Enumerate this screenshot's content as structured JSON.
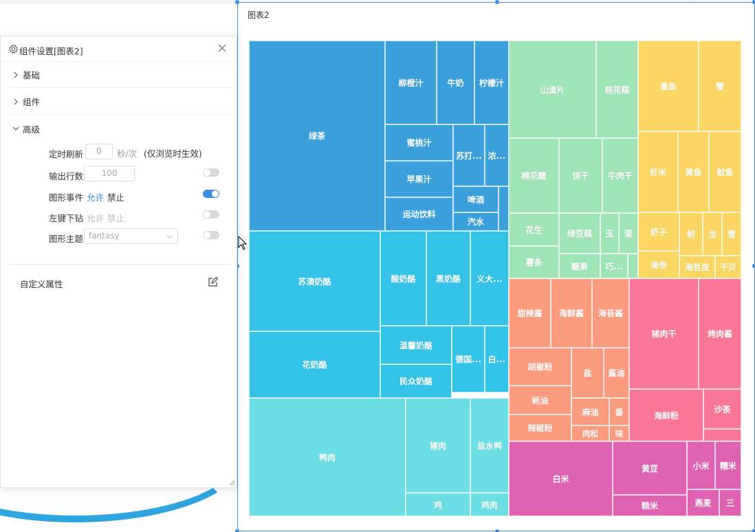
{
  "chart": {
    "title": "图表2",
    "theme": "fantasy",
    "colors": {
      "beverages": "#3aa0dc",
      "dairy": "#33c2e8",
      "meat": "#6bdde4",
      "snacks": "#9fe4b4",
      "seafood": "#fcd662",
      "condiments": "#fc9b7e",
      "dried_meat": "#fa7697",
      "grains": "#df62b2"
    }
  },
  "panel": {
    "title": "组件设置[图表2]",
    "sections": {
      "basic": "基础",
      "component": "组件",
      "advanced": "高级"
    },
    "refresh": {
      "label": "定时刷新",
      "value": "0",
      "unit": "秒/次",
      "note": "(仅浏览时生效)"
    },
    "output_rows": {
      "label": "输出行数",
      "value": "100"
    },
    "chart_event": {
      "label": "图形事件",
      "allow": "允许",
      "deny": "禁止"
    },
    "left_drill": {
      "label": "左键下钻",
      "allow": "允许",
      "deny": "禁止"
    },
    "chart_theme": {
      "label": "图形主题",
      "value": "fantasy"
    },
    "custom_props": "自定义属性"
  },
  "chart_data": {
    "type": "treemap",
    "title": "图表2",
    "groups": [
      {
        "name": "",
        "color": "#3aa0dc",
        "items": [
          "绿茶",
          "柳橙汁",
          "牛奶",
          "柠檬汁",
          "蜜桃汁",
          "苏打...",
          "浓...",
          "苹果汁",
          "啤酒",
          "运动饮料",
          "汽水"
        ]
      },
      {
        "name": "",
        "color": "#33c2e8",
        "items": [
          "苏澳奶酪",
          "酸奶酪",
          "黑奶酪",
          "义大...",
          "花奶酪",
          "温馨奶酪",
          "德国...",
          "白...",
          "民众奶酪"
        ]
      },
      {
        "name": "",
        "color": "#6bdde4",
        "items": [
          "鸭肉",
          "猪肉",
          "盐水鸭",
          "鸡",
          "鸡肉"
        ]
      },
      {
        "name": "",
        "color": "#9fe4b4",
        "items": [
          "山渣片",
          "桂花糕",
          "棉花糖",
          "饼干",
          "牛肉干",
          "花生",
          "绿豆糕",
          "玉",
          "蛋",
          "薯条",
          "糖果",
          "巧..."
        ]
      },
      {
        "name": "",
        "color": "#fcd662",
        "items": [
          "墨鱼",
          "蟹",
          "虾米",
          "黄鱼",
          "鱿鱼",
          "虾子",
          "蚵",
          "龙",
          "雪",
          "海参",
          "海哲皮",
          "干贝"
        ]
      },
      {
        "name": "",
        "color": "#fc9b7e",
        "items": [
          "甜辣酱",
          "海鲜酱",
          "海苔酱",
          "胡椒粉",
          "盐",
          "酱油",
          "蚝油",
          "麻油",
          "番",
          "辣椒粉",
          "肉松",
          "味"
        ]
      },
      {
        "name": "",
        "color": "#fa7697",
        "items": [
          "猪肉干",
          "烤肉酱",
          "海鲜粉",
          "沙茶"
        ]
      },
      {
        "name": "",
        "color": "#df62b2",
        "items": [
          "白米",
          "黄豆",
          "小米",
          "糯米",
          "糙米",
          "燕麦",
          "三"
        ]
      }
    ]
  }
}
